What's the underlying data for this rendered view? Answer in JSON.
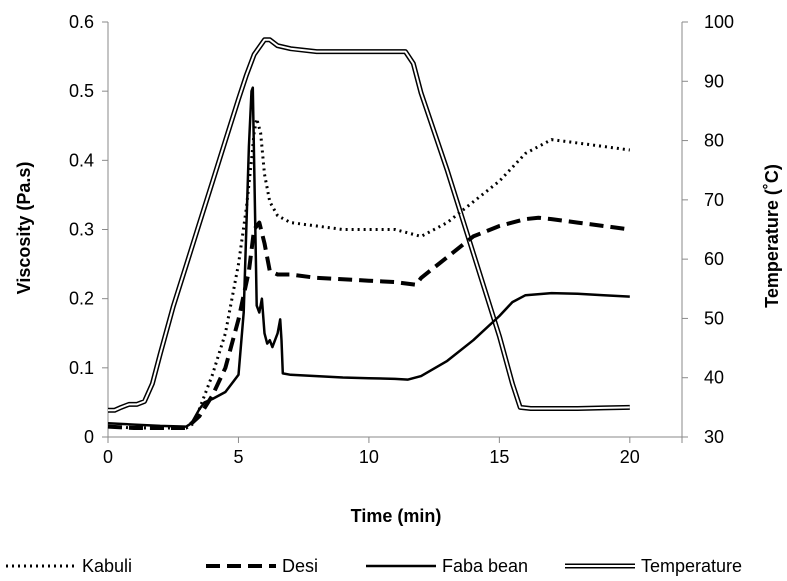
{
  "chart_data": {
    "type": "line",
    "title": "",
    "xlabel": "Time (min)",
    "ylabel": "Viscosity (Pa.s)",
    "y2label": "Temperature (˚C)",
    "xlim": [
      0,
      22
    ],
    "ylim": [
      0,
      0.6
    ],
    "y2lim": [
      30,
      100
    ],
    "x_ticks": [
      "0",
      "5",
      "10",
      "15",
      "20"
    ],
    "y_ticks": [
      "0",
      "0.1",
      "0.2",
      "0.3",
      "0.4",
      "0.5",
      "0.6"
    ],
    "y2_ticks": [
      "30",
      "40",
      "50",
      "60",
      "70",
      "80",
      "90",
      "100"
    ],
    "grid": false,
    "legend_position": "bottom",
    "series": [
      {
        "name": "Kabuli",
        "axis": "left",
        "style": "dotted",
        "x": [
          0,
          1,
          2,
          3,
          3.3,
          3.6,
          4,
          4.5,
          5,
          5.3,
          5.5,
          5.6,
          5.7,
          5.85,
          6,
          6.2,
          6.5,
          7,
          8,
          9,
          10,
          11,
          12,
          13,
          14,
          15,
          16,
          17,
          18,
          19,
          20
        ],
        "y": [
          0.015,
          0.013,
          0.013,
          0.013,
          0.02,
          0.05,
          0.09,
          0.15,
          0.25,
          0.33,
          0.4,
          0.44,
          0.46,
          0.44,
          0.38,
          0.34,
          0.32,
          0.31,
          0.305,
          0.3,
          0.3,
          0.3,
          0.29,
          0.31,
          0.34,
          0.37,
          0.41,
          0.43,
          0.425,
          0.42,
          0.415
        ]
      },
      {
        "name": "Desi",
        "axis": "left",
        "style": "dashed",
        "x": [
          0,
          1,
          2,
          3,
          3.5,
          4,
          4.5,
          5,
          5.4,
          5.6,
          5.8,
          6,
          6.2,
          6.5,
          7,
          8,
          9,
          10,
          11,
          11.8,
          12,
          13,
          14,
          15,
          16,
          16.5,
          17,
          18,
          19,
          20
        ],
        "y": [
          0.015,
          0.013,
          0.013,
          0.013,
          0.03,
          0.06,
          0.1,
          0.17,
          0.24,
          0.3,
          0.31,
          0.28,
          0.24,
          0.235,
          0.235,
          0.23,
          0.228,
          0.226,
          0.224,
          0.22,
          0.23,
          0.26,
          0.29,
          0.305,
          0.315,
          0.317,
          0.315,
          0.31,
          0.305,
          0.3
        ]
      },
      {
        "name": "Faba bean",
        "axis": "left",
        "style": "solid",
        "x": [
          0,
          1,
          2,
          3,
          3.2,
          3.5,
          3.7,
          4,
          4.5,
          5,
          5.2,
          5.3,
          5.4,
          5.5,
          5.55,
          5.6,
          5.7,
          5.8,
          5.9,
          6,
          6.1,
          6.2,
          6.3,
          6.5,
          6.6,
          6.65,
          6.7,
          7,
          8,
          9,
          10,
          11,
          11.5,
          12,
          13,
          14,
          15,
          15.5,
          16,
          17,
          18,
          19,
          20
        ],
        "y": [
          0.02,
          0.018,
          0.016,
          0.015,
          0.02,
          0.04,
          0.05,
          0.055,
          0.065,
          0.09,
          0.18,
          0.3,
          0.42,
          0.5,
          0.505,
          0.4,
          0.19,
          0.18,
          0.2,
          0.15,
          0.135,
          0.14,
          0.13,
          0.15,
          0.17,
          0.14,
          0.092,
          0.09,
          0.088,
          0.086,
          0.085,
          0.084,
          0.083,
          0.088,
          0.11,
          0.14,
          0.175,
          0.195,
          0.205,
          0.208,
          0.207,
          0.205,
          0.203
        ]
      },
      {
        "name": "Temperature",
        "axis": "right",
        "style": "double",
        "x": [
          0,
          0.25,
          0.5,
          0.8,
          1.1,
          1.4,
          1.7,
          2,
          2.5,
          3,
          3.5,
          4,
          4.5,
          5,
          5.3,
          5.6,
          6,
          6.2,
          6.5,
          7,
          8,
          9,
          10,
          11,
          11.4,
          11.7,
          12,
          13,
          14,
          15,
          15.5,
          15.8,
          16.2,
          17,
          18,
          19,
          20
        ],
        "y": [
          34.5,
          34.5,
          35,
          35.5,
          35.5,
          36,
          39,
          44,
          52,
          59,
          66,
          73,
          80,
          87,
          91,
          94.5,
          97,
          97,
          96,
          95.5,
          95,
          95,
          95,
          95,
          95,
          93,
          88,
          75,
          61,
          47,
          39,
          35,
          34.8,
          34.8,
          34.8,
          34.9,
          35
        ]
      }
    ]
  }
}
